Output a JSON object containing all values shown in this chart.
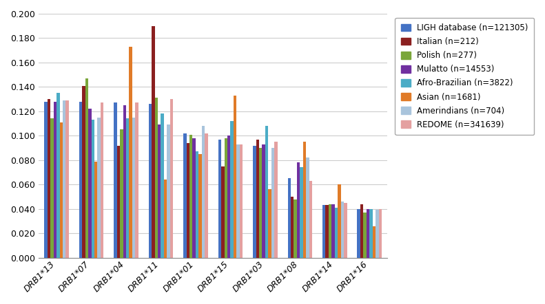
{
  "categories": [
    "DRB1*13",
    "DRB1*07",
    "DRB1*04",
    "DRB1*11",
    "DRB1*01",
    "DRB1*15",
    "DRB1*03",
    "DRB1*08",
    "DRB1*14",
    "DRB1*16"
  ],
  "series": {
    "LIGH database (n=121305)": [
      0.128,
      0.128,
      0.127,
      0.126,
      0.102,
      0.097,
      0.092,
      0.065,
      0.043,
      0.04
    ],
    "Italian (n=212)": [
      0.13,
      0.141,
      0.092,
      0.19,
      0.094,
      0.075,
      0.097,
      0.05,
      0.043,
      0.044
    ],
    "Polish (n=277)": [
      0.114,
      0.147,
      0.105,
      0.131,
      0.101,
      0.098,
      0.09,
      0.048,
      0.044,
      0.037
    ],
    "Mulatto (n=14553)": [
      0.128,
      0.122,
      0.125,
      0.109,
      0.098,
      0.1,
      0.093,
      0.078,
      0.044,
      0.04
    ],
    "Afro-Brazilian (n=3822)": [
      0.135,
      0.113,
      0.114,
      0.118,
      0.087,
      0.112,
      0.108,
      0.074,
      0.041,
      0.04
    ],
    "Asian (n=1681)": [
      0.111,
      0.079,
      0.173,
      0.064,
      0.085,
      0.133,
      0.056,
      0.095,
      0.06,
      0.026
    ],
    "Amerindians (n=704)": [
      0.129,
      0.115,
      0.115,
      0.109,
      0.108,
      0.093,
      0.09,
      0.082,
      0.046,
      0.039
    ],
    "REDOME (n=341639)": [
      0.129,
      0.127,
      0.127,
      0.13,
      0.102,
      0.093,
      0.095,
      0.063,
      0.045,
      0.04
    ]
  },
  "colors": {
    "LIGH database (n=121305)": "#4472C4",
    "Italian (n=212)": "#8B2020",
    "Polish (n=277)": "#7AA63A",
    "Mulatto (n=14553)": "#7030A0",
    "Afro-Brazilian (n=3822)": "#4BACC6",
    "Asian (n=1681)": "#E07B28",
    "Amerindians (n=704)": "#A9C4DC",
    "REDOME (n=341639)": "#E4A0A0"
  },
  "ylim": [
    0.0,
    0.2
  ],
  "yticks": [
    0.0,
    0.02,
    0.04,
    0.06,
    0.08,
    0.1,
    0.12,
    0.14,
    0.16,
    0.18,
    0.2
  ],
  "figsize": [
    7.91,
    4.42
  ],
  "dpi": 100
}
